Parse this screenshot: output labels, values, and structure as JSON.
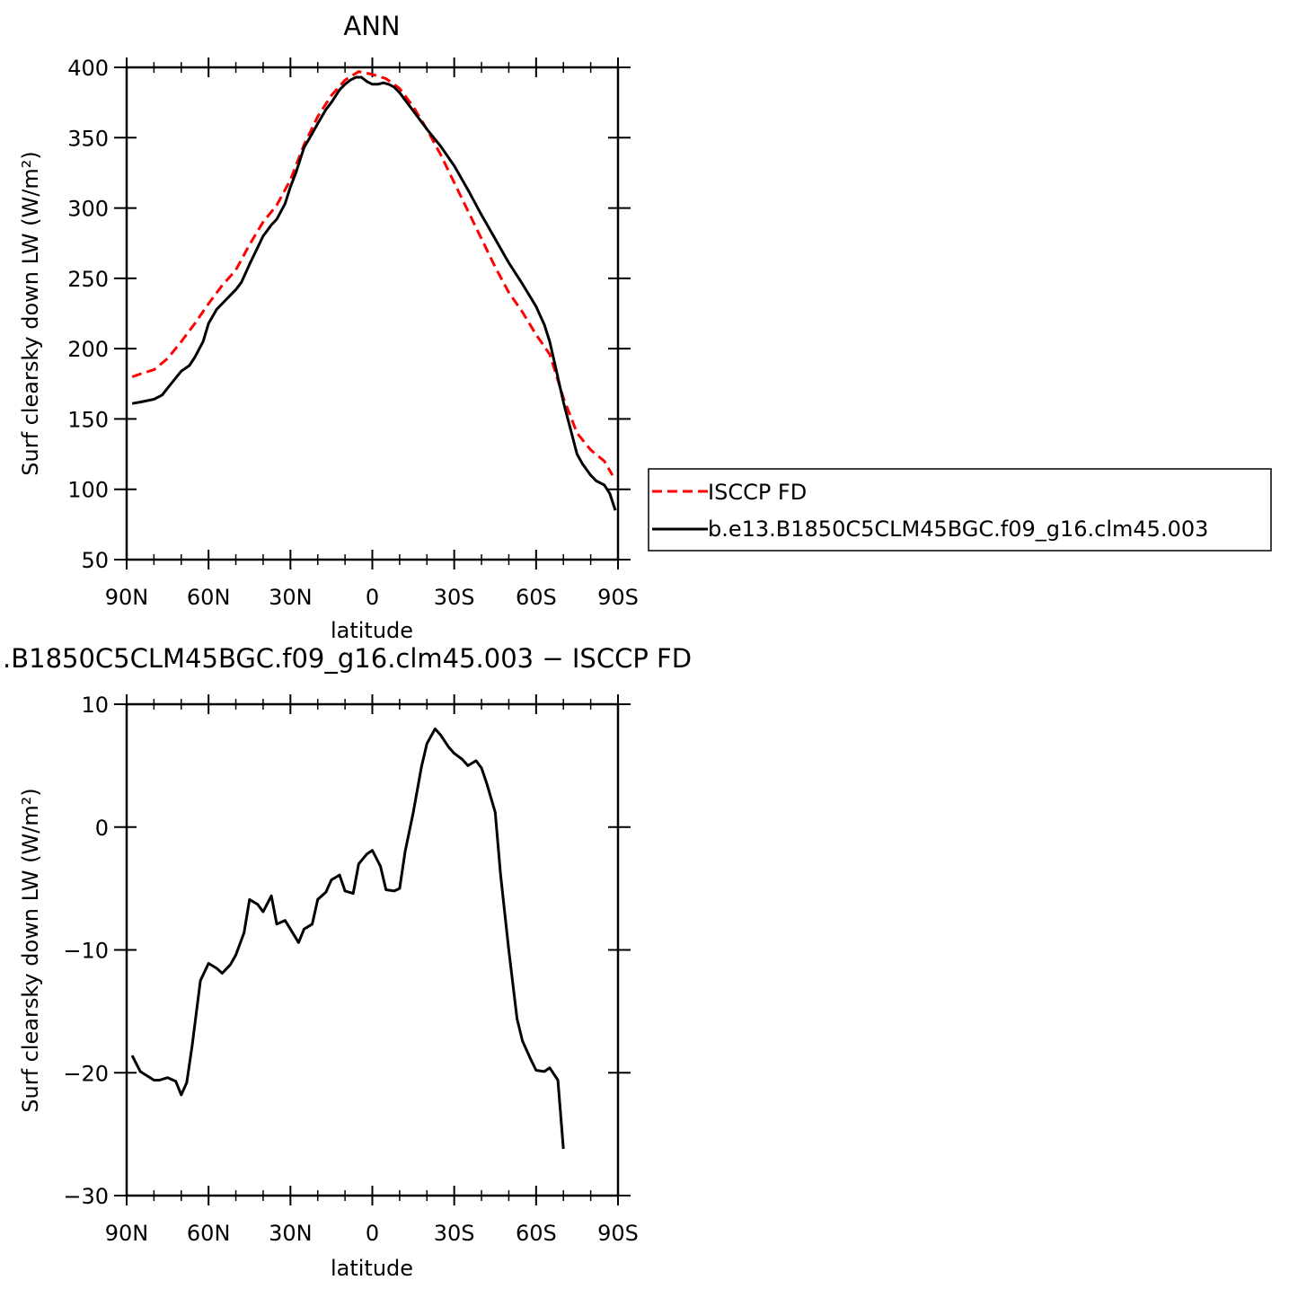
{
  "chart_data": [
    {
      "type": "line",
      "title": "ANN",
      "xlabel": "latitude",
      "ylabel": "Surf clearsky down LW (W/m²)",
      "xlim": [
        90,
        -90
      ],
      "ylim": [
        50,
        400
      ],
      "x_ticks": [
        {
          "value": 90,
          "label": "90N"
        },
        {
          "value": 60,
          "label": "60N"
        },
        {
          "value": 30,
          "label": "30N"
        },
        {
          "value": 0,
          "label": "0"
        },
        {
          "value": -30,
          "label": "30S"
        },
        {
          "value": -60,
          "label": "60S"
        },
        {
          "value": -90,
          "label": "90S"
        }
      ],
      "y_ticks": [
        50,
        100,
        150,
        200,
        250,
        300,
        350,
        400
      ],
      "legend_position": "right",
      "series": [
        {
          "name": "ISCCP FD",
          "color": "#ff0000",
          "dash": "dashed",
          "points": [
            [
              88,
              180
            ],
            [
              85,
              182
            ],
            [
              80,
              185
            ],
            [
              75,
              193
            ],
            [
              70,
              205
            ],
            [
              65,
              218
            ],
            [
              60,
              232
            ],
            [
              55,
              245
            ],
            [
              50,
              256
            ],
            [
              45,
              274
            ],
            [
              40,
              290
            ],
            [
              35,
              302
            ],
            [
              30,
              320
            ],
            [
              25,
              345
            ],
            [
              20,
              365
            ],
            [
              15,
              380
            ],
            [
              10,
              391
            ],
            [
              5,
              397
            ],
            [
              0,
              395
            ],
            [
              -5,
              392
            ],
            [
              -10,
              385
            ],
            [
              -15,
              372
            ],
            [
              -20,
              356
            ],
            [
              -25,
              338
            ],
            [
              -30,
              318
            ],
            [
              -35,
              298
            ],
            [
              -40,
              278
            ],
            [
              -45,
              258
            ],
            [
              -50,
              240
            ],
            [
              -55,
              226
            ],
            [
              -60,
              210
            ],
            [
              -65,
              196
            ],
            [
              -70,
              165
            ],
            [
              -75,
              140
            ],
            [
              -80,
              128
            ],
            [
              -85,
              120
            ],
            [
              -88,
              110
            ]
          ]
        },
        {
          "name": "b.e13.B1850C5CLM45BGC.f09_g16.clm45.003",
          "color": "#000000",
          "dash": "solid",
          "points": [
            [
              88,
              161
            ],
            [
              85,
              162
            ],
            [
              80,
              164
            ],
            [
              77,
              167
            ],
            [
              75,
              172
            ],
            [
              70,
              184
            ],
            [
              67,
              188
            ],
            [
              65,
              194
            ],
            [
              62,
              205
            ],
            [
              60,
              218
            ],
            [
              57,
              228
            ],
            [
              55,
              232
            ],
            [
              52,
              238
            ],
            [
              50,
              242
            ],
            [
              48,
              247
            ],
            [
              45,
              260
            ],
            [
              42,
              272
            ],
            [
              40,
              280
            ],
            [
              37,
              288
            ],
            [
              35,
              292
            ],
            [
              32,
              303
            ],
            [
              30,
              315
            ],
            [
              28,
              325
            ],
            [
              25,
              343
            ],
            [
              22,
              353
            ],
            [
              20,
              360
            ],
            [
              17,
              370
            ],
            [
              15,
              375
            ],
            [
              12,
              384
            ],
            [
              10,
              388
            ],
            [
              8,
              391
            ],
            [
              6,
              393
            ],
            [
              4,
              393
            ],
            [
              2,
              390
            ],
            [
              0,
              388
            ],
            [
              -2,
              388
            ],
            [
              -4,
              389
            ],
            [
              -6,
              388
            ],
            [
              -8,
              386
            ],
            [
              -10,
              382
            ],
            [
              -15,
              369
            ],
            [
              -20,
              356
            ],
            [
              -25,
              344
            ],
            [
              -30,
              330
            ],
            [
              -35,
              313
            ],
            [
              -40,
              295
            ],
            [
              -45,
              278
            ],
            [
              -50,
              261
            ],
            [
              -55,
              246
            ],
            [
              -60,
              230
            ],
            [
              -63,
              217
            ],
            [
              -65,
              205
            ],
            [
              -67,
              188
            ],
            [
              -70,
              162
            ],
            [
              -73,
              140
            ],
            [
              -75,
              125
            ],
            [
              -77,
              118
            ],
            [
              -80,
              110
            ],
            [
              -82,
              106
            ],
            [
              -85,
              103
            ],
            [
              -87,
              97
            ],
            [
              -89,
              85
            ]
          ]
        }
      ]
    },
    {
      "type": "line",
      "title": ".B1850C5CLM45BGC.f09_g16.clm45.003 − ISCCP FD",
      "xlabel": "latitude",
      "ylabel": "Surf clearsky down LW (W/m²)",
      "xlim": [
        90,
        -90
      ],
      "ylim": [
        -30,
        10
      ],
      "x_ticks": [
        {
          "value": 90,
          "label": "90N"
        },
        {
          "value": 60,
          "label": "60N"
        },
        {
          "value": 30,
          "label": "30N"
        },
        {
          "value": 0,
          "label": "0"
        },
        {
          "value": -30,
          "label": "30S"
        },
        {
          "value": -60,
          "label": "60S"
        },
        {
          "value": -90,
          "label": "90S"
        }
      ],
      "y_ticks": [
        {
          "value": 10,
          "label": "10"
        },
        {
          "value": 0,
          "label": "0"
        },
        {
          "value": -10,
          "label": "−10"
        },
        {
          "value": -20,
          "label": "−20"
        },
        {
          "value": -30,
          "label": "−30"
        }
      ],
      "series": [
        {
          "color": "#000000",
          "dash": "solid",
          "points": [
            [
              88,
              -18.6
            ],
            [
              85,
              -19.9
            ],
            [
              80,
              -20.6
            ],
            [
              78,
              -20.6
            ],
            [
              75,
              -20.4
            ],
            [
              72,
              -20.7
            ],
            [
              70,
              -21.8
            ],
            [
              68,
              -20.8
            ],
            [
              66,
              -17.8
            ],
            [
              63,
              -12.5
            ],
            [
              60,
              -11.1
            ],
            [
              57,
              -11.5
            ],
            [
              55,
              -11.9
            ],
            [
              52,
              -11.2
            ],
            [
              50,
              -10.4
            ],
            [
              47,
              -8.6
            ],
            [
              45,
              -5.9
            ],
            [
              42,
              -6.3
            ],
            [
              40,
              -6.9
            ],
            [
              37,
              -5.6
            ],
            [
              35,
              -7.9
            ],
            [
              32,
              -7.6
            ],
            [
              30,
              -8.3
            ],
            [
              27,
              -9.4
            ],
            [
              25,
              -8.3
            ],
            [
              22,
              -7.9
            ],
            [
              20,
              -5.9
            ],
            [
              17,
              -5.3
            ],
            [
              15,
              -4.3
            ],
            [
              12,
              -3.9
            ],
            [
              10,
              -5.2
            ],
            [
              7,
              -5.4
            ],
            [
              5,
              -3.0
            ],
            [
              2,
              -2.2
            ],
            [
              0,
              -1.9
            ],
            [
              -3,
              -3.2
            ],
            [
              -5,
              -5.1
            ],
            [
              -8,
              -5.2
            ],
            [
              -10,
              -5.0
            ],
            [
              -12,
              -2.0
            ],
            [
              -15,
              1.2
            ],
            [
              -18,
              4.9
            ],
            [
              -20,
              6.8
            ],
            [
              -23,
              8.0
            ],
            [
              -25,
              7.5
            ],
            [
              -28,
              6.5
            ],
            [
              -30,
              6.0
            ],
            [
              -33,
              5.5
            ],
            [
              -35,
              5.0
            ],
            [
              -38,
              5.4
            ],
            [
              -40,
              4.8
            ],
            [
              -42,
              3.5
            ],
            [
              -45,
              1.2
            ],
            [
              -47,
              -3.9
            ],
            [
              -50,
              -10.0
            ],
            [
              -53,
              -15.6
            ],
            [
              -55,
              -17.4
            ],
            [
              -58,
              -18.9
            ],
            [
              -60,
              -19.8
            ],
            [
              -63,
              -19.9
            ],
            [
              -65,
              -19.6
            ],
            [
              -68,
              -20.6
            ],
            [
              -70,
              -26.2
            ]
          ]
        }
      ]
    }
  ]
}
